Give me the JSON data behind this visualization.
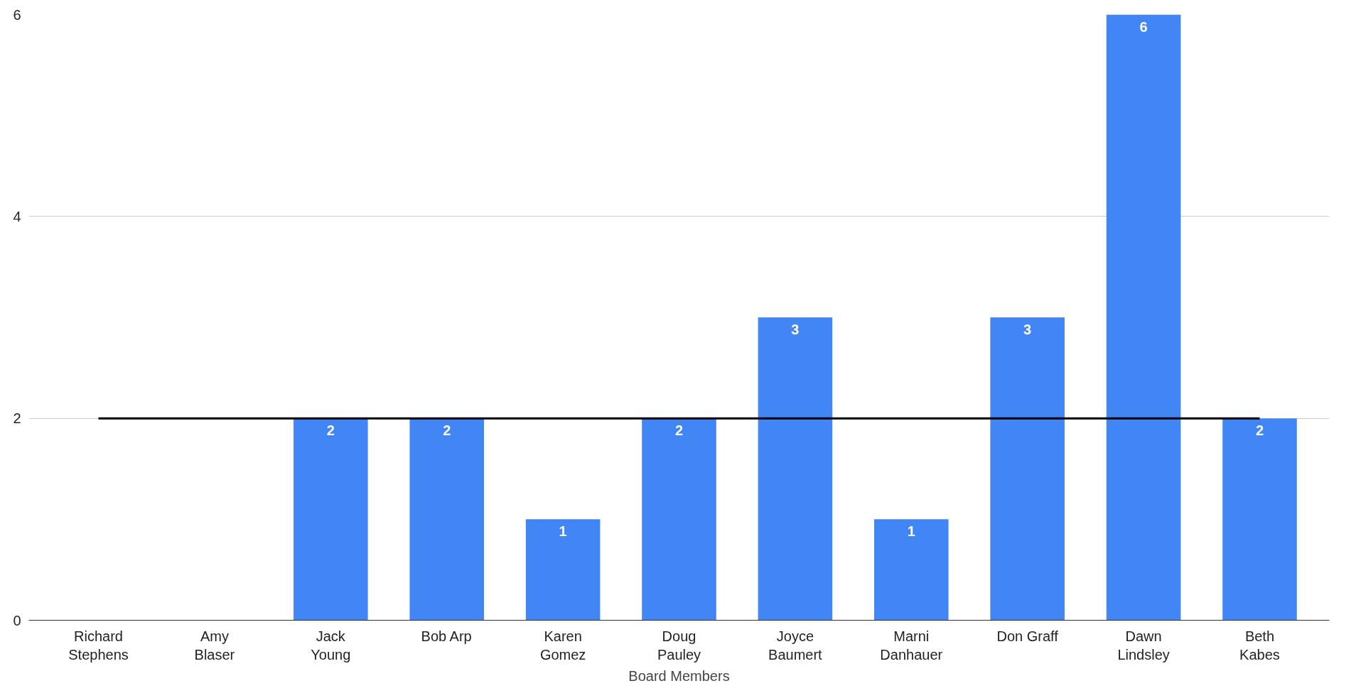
{
  "chart_data": {
    "type": "bar",
    "xlabel": "Board Members",
    "categories": [
      "Richard Stephens",
      "Amy Blaser",
      "Jack Young",
      "Bob Arp",
      "Karen Gomez",
      "Doug Pauley",
      "Joyce Baumert",
      "Marni Danhauer",
      "Don Graff",
      "Dawn Lindsley",
      "Beth Kabes"
    ],
    "series": [
      {
        "color": "#4285f4",
        "values": [
          0,
          0,
          2,
          2,
          1,
          2,
          3,
          1,
          3,
          6,
          2
        ],
        "value_labels": [
          null,
          null,
          "2",
          "2",
          "1",
          "2",
          "3",
          "1",
          "3",
          "6",
          "2"
        ]
      },
      {
        "type": "line",
        "color": "#000000",
        "values": [
          2,
          2,
          2,
          2,
          2,
          2,
          2,
          2,
          2,
          2,
          2
        ],
        "line_style": "solid",
        "marker": "none"
      }
    ],
    "ylim": [
      0,
      6
    ],
    "yticks": [
      0,
      2,
      4,
      6
    ],
    "grid": "y"
  }
}
